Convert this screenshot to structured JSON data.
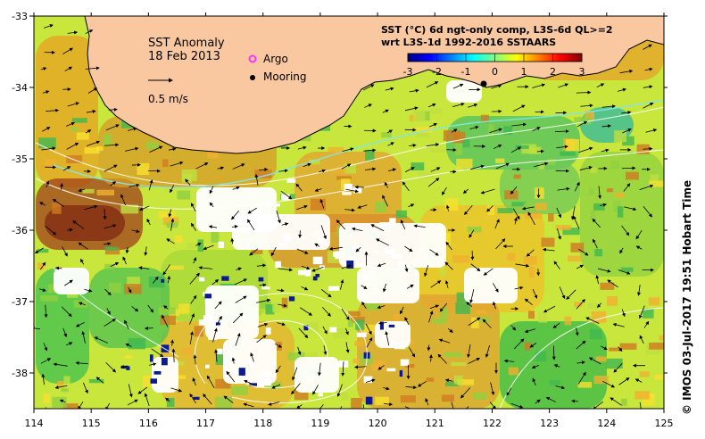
{
  "map": {
    "title": "SST Anomaly",
    "date": "18 Feb 2013",
    "velocity_scale_label": "0.5 m/s",
    "legend": {
      "argo_label": "Argo",
      "mooring_label": "Mooring",
      "argo_color": "#ff33ff",
      "mooring_color": "#000000"
    },
    "colorbar": {
      "title_line1": "SST (°C) 6d ngt-only comp, L3S-6d QL>=2",
      "title_line2": "wrt L3S-1d 1992-2016 SSTAARS",
      "ticks": [
        "-3",
        "-2",
        "-1",
        "0",
        "1",
        "2",
        "3"
      ],
      "min": -3,
      "max": 3,
      "colors": [
        "#00007f",
        "#0000ff",
        "#0080ff",
        "#00ffff",
        "#80ff80",
        "#ffff00",
        "#ff8000",
        "#ff0000",
        "#7f0000"
      ]
    },
    "x_axis": {
      "ticks": [
        "114",
        "115",
        "116",
        "117",
        "118",
        "119",
        "120",
        "121",
        "122",
        "123",
        "124",
        "125"
      ],
      "range": [
        114,
        125
      ]
    },
    "y_axis": {
      "ticks": [
        "-33",
        "-34",
        "-35",
        "-36",
        "-37",
        "-38"
      ],
      "range": [
        -38.5,
        -33
      ]
    },
    "credit": "©  IMOS 03-Jul-2017 19:51 Hobart Time",
    "land_color": "#fac8a0",
    "mooring_position": {
      "lon": 121.9,
      "lat": -34.0
    }
  }
}
